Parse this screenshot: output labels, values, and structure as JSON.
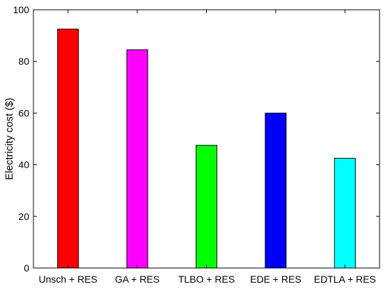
{
  "chart_data": {
    "type": "bar",
    "title": "",
    "xlabel": "",
    "ylabel": "Electricity cost ($)",
    "categories": [
      "Unsch + RES",
      "GA + RES",
      "TLBO + RES",
      "EDE + RES",
      "EDTLA + RES"
    ],
    "values": [
      92.5,
      84.5,
      47.5,
      60,
      42.5
    ],
    "colors": [
      "#ff0000",
      "#ff00ff",
      "#00ff00",
      "#0000ff",
      "#00ffff"
    ],
    "ylim": [
      0,
      100
    ],
    "yticks": [
      0,
      20,
      40,
      60,
      80,
      100
    ],
    "grid": false,
    "legend": "none"
  }
}
